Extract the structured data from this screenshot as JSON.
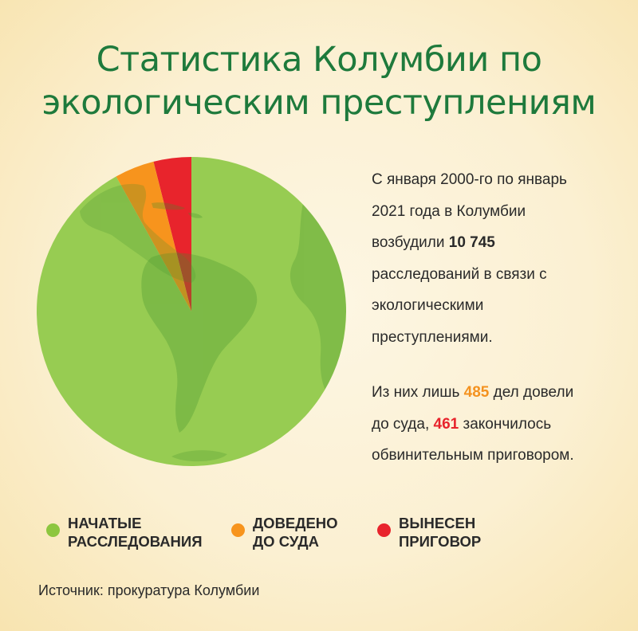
{
  "title": {
    "line1": "Статистика Колумбии по",
    "line2": "экологическим преступлениям"
  },
  "text": {
    "p1_a": "С января 2000-го по январь",
    "p1_b": "2021 года в Колумбии",
    "p1_c_pre": "возбудили ",
    "p1_c_num": "10 745",
    "p1_d": "расследований в связи с",
    "p1_e": "экологическими",
    "p1_f": "преступлениями.",
    "p2_a_pre": "Из них лишь ",
    "p2_a_num": "485",
    "p2_a_post": " дел довели",
    "p2_b_pre": "до суда, ",
    "p2_b_num": "461",
    "p2_b_post": " закончилось",
    "p2_c": "обвинительным приговором."
  },
  "legend": [
    {
      "line1": "НАЧАТЫЕ",
      "line2": "РАССЛЕДОВАНИЯ",
      "color": "#8dc63f"
    },
    {
      "line1": "ДОВЕДЕНО",
      "line2": "ДО СУДА",
      "color": "#f7941d"
    },
    {
      "line1": "ВЫНЕСЕН",
      "line2": "ПРИГОВОР",
      "color": "#e8242c"
    }
  ],
  "source": "Источник: прокуратура Колумбии",
  "chart_data": {
    "type": "pie",
    "categories": [
      "НАЧАТЫЕ РАССЛЕДОВАНИЯ",
      "ДОВЕДЕНО ДО СУДА",
      "ВЫНЕСЕН ПРИГОВОР"
    ],
    "values": [
      10745,
      485,
      461
    ],
    "colors": [
      "#97cc52",
      "#f7941d",
      "#e8242c"
    ],
    "start_angle_deg": 0,
    "direction": "counterclockwise"
  }
}
